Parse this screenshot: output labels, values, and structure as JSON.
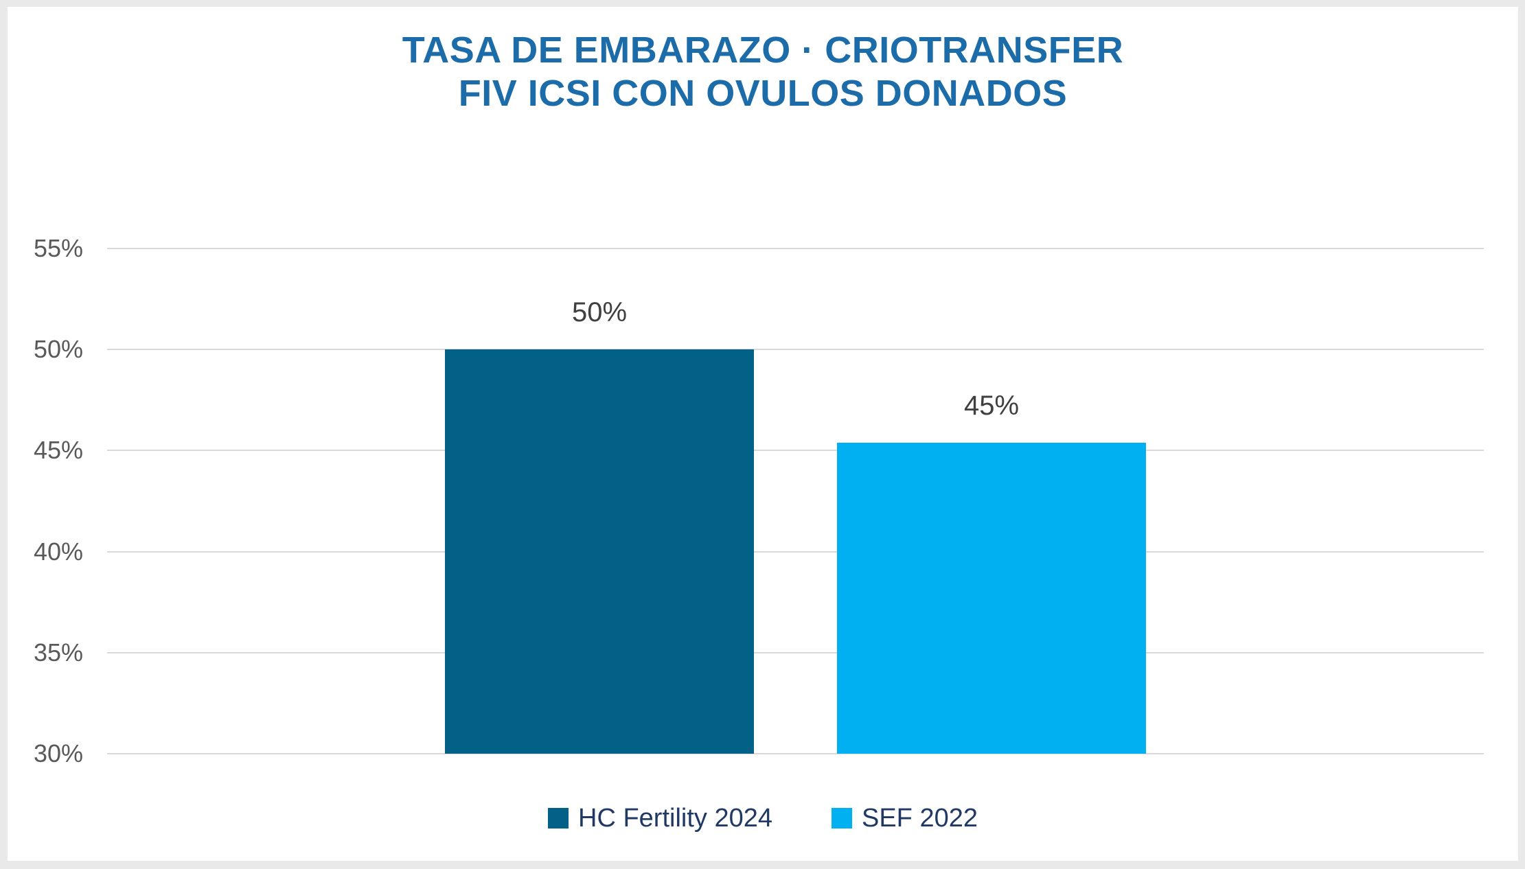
{
  "chart_data": {
    "type": "bar",
    "title_lines": [
      "TASA DE EMBARAZO · CRIOTRANSFER",
      "FIV ICSI CON OVULOS DONADOS"
    ],
    "title": "TASA DE EMBARAZO · CRIOTRANSFER FIV ICSI CON OVULOS DONADOS",
    "series": [
      {
        "name": "HC Fertility 2024",
        "value": 50,
        "data_label": "50%",
        "color": "#036086"
      },
      {
        "name": "SEF 2022",
        "value": 45.4,
        "data_label": "45%",
        "color": "#00b0f0"
      }
    ],
    "ylabel": "",
    "xlabel": "",
    "ylim": [
      30,
      55
    ],
    "y_ticks": [
      {
        "value": 55,
        "label": "55%"
      },
      {
        "value": 50,
        "label": "50%"
      },
      {
        "value": 45,
        "label": "45%"
      },
      {
        "value": 40,
        "label": "40%"
      },
      {
        "value": 35,
        "label": "35%"
      },
      {
        "value": 30,
        "label": "30%"
      }
    ],
    "grid": true,
    "legend_position": "bottom"
  },
  "colors": {
    "background": "#e9e9e9",
    "panel": "#ffffff",
    "title": "#1b6ca8",
    "gridline": "#d9d9d9",
    "tick_label": "#595959",
    "data_label": "#404040",
    "legend_text": "#1f3864"
  }
}
